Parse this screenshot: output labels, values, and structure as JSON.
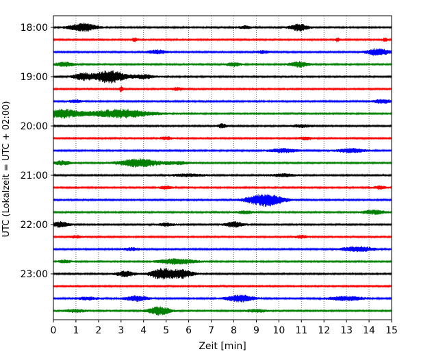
{
  "chart_data": {
    "type": "line",
    "title": "",
    "xlabel": "Zeit  [min]",
    "ylabel": "UTC (Lokalzeit = UTC + 02:00)",
    "xlim": [
      0,
      15
    ],
    "x_ticks": [
      0,
      1,
      2,
      3,
      4,
      5,
      6,
      7,
      8,
      9,
      10,
      11,
      12,
      13,
      14,
      15
    ],
    "x_tick_labels": [
      "0",
      "1",
      "2",
      "3",
      "4",
      "5",
      "6",
      "7",
      "8",
      "9",
      "10",
      "11",
      "12",
      "13",
      "14",
      "15"
    ],
    "y_tick_labels": [
      "18:00",
      "19:00",
      "20:00",
      "21:00",
      "22:00",
      "23:00"
    ],
    "grid": "vertical dotted",
    "trace_colors": [
      "#000000",
      "#ff0000",
      "#0000ff",
      "#008000"
    ],
    "traces": [
      {
        "start": "18:00",
        "events": [
          {
            "t": 1.3,
            "a": 6,
            "w": 0.6
          },
          {
            "t": 10.9,
            "a": 5,
            "w": 0.4
          },
          {
            "t": 8.5,
            "a": 2,
            "w": 0.3
          }
        ]
      },
      {
        "start": "18:15",
        "events": [
          {
            "t": 3.6,
            "a": 3,
            "w": 0.1
          },
          {
            "t": 12.6,
            "a": 3,
            "w": 0.1
          },
          {
            "t": 14.7,
            "a": 3,
            "w": 0.1
          }
        ]
      },
      {
        "start": "18:30",
        "events": [
          {
            "t": 4.6,
            "a": 3,
            "w": 0.4
          },
          {
            "t": 14.4,
            "a": 5,
            "w": 0.5
          },
          {
            "t": 9.3,
            "a": 2,
            "w": 0.3
          }
        ]
      },
      {
        "start": "18:45",
        "events": [
          {
            "t": 0.5,
            "a": 3,
            "w": 0.4
          },
          {
            "t": 8.0,
            "a": 3,
            "w": 0.3
          },
          {
            "t": 10.9,
            "a": 4,
            "w": 0.4
          }
        ]
      },
      {
        "start": "19:00",
        "events": [
          {
            "t": 1.3,
            "a": 5,
            "w": 0.4
          },
          {
            "t": 2.5,
            "a": 9,
            "w": 0.7
          },
          {
            "t": 4.0,
            "a": 3,
            "w": 0.5
          }
        ]
      },
      {
        "start": "19:15",
        "events": [
          {
            "t": 3.0,
            "a": 4,
            "w": 0.1
          },
          {
            "t": 5.5,
            "a": 2,
            "w": 0.3
          }
        ]
      },
      {
        "start": "19:30",
        "events": [
          {
            "t": 1.0,
            "a": 2,
            "w": 0.3
          },
          {
            "t": 14.6,
            "a": 3,
            "w": 0.4
          }
        ]
      },
      {
        "start": "19:45",
        "events": [
          {
            "t": 0.4,
            "a": 6,
            "w": 0.8
          },
          {
            "t": 3.0,
            "a": 6,
            "w": 1.4
          }
        ]
      },
      {
        "start": "20:00",
        "events": [
          {
            "t": 7.5,
            "a": 3,
            "w": 0.2
          },
          {
            "t": 11.0,
            "a": 2,
            "w": 0.5
          }
        ]
      },
      {
        "start": "20:15",
        "events": [
          {
            "t": 5.0,
            "a": 2,
            "w": 0.3
          },
          {
            "t": 11.2,
            "a": 2,
            "w": 0.3
          }
        ]
      },
      {
        "start": "20:30",
        "events": [
          {
            "t": 10.2,
            "a": 3,
            "w": 0.6
          },
          {
            "t": 13.2,
            "a": 3,
            "w": 0.6
          }
        ]
      },
      {
        "start": "20:45",
        "events": [
          {
            "t": 0.4,
            "a": 3,
            "w": 0.4
          },
          {
            "t": 3.8,
            "a": 6,
            "w": 0.9
          },
          {
            "t": 5.5,
            "a": 2,
            "w": 0.6
          }
        ]
      },
      {
        "start": "21:00",
        "events": [
          {
            "t": 6.0,
            "a": 2,
            "w": 0.7
          },
          {
            "t": 10.2,
            "a": 2,
            "w": 0.6
          }
        ]
      },
      {
        "start": "21:15",
        "events": [
          {
            "t": 5.0,
            "a": 2,
            "w": 0.3
          },
          {
            "t": 14.5,
            "a": 2,
            "w": 0.3
          }
        ]
      },
      {
        "start": "21:30",
        "events": [
          {
            "t": 9.4,
            "a": 9,
            "w": 0.8
          }
        ]
      },
      {
        "start": "21:45",
        "events": [
          {
            "t": 14.2,
            "a": 3,
            "w": 0.5
          },
          {
            "t": 8.5,
            "a": 2,
            "w": 0.4
          }
        ]
      },
      {
        "start": "22:00",
        "events": [
          {
            "t": 0.3,
            "a": 4,
            "w": 0.4
          },
          {
            "t": 8.0,
            "a": 4,
            "w": 0.4
          },
          {
            "t": 5.0,
            "a": 2,
            "w": 0.4
          }
        ]
      },
      {
        "start": "22:15",
        "events": [
          {
            "t": 1.0,
            "a": 2,
            "w": 0.3
          },
          {
            "t": 11.0,
            "a": 2,
            "w": 0.3
          }
        ]
      },
      {
        "start": "22:30",
        "events": [
          {
            "t": 13.5,
            "a": 4,
            "w": 0.7
          },
          {
            "t": 3.5,
            "a": 2,
            "w": 0.4
          }
        ]
      },
      {
        "start": "22:45",
        "events": [
          {
            "t": 5.5,
            "a": 4,
            "w": 0.8
          },
          {
            "t": 0.5,
            "a": 2,
            "w": 0.3
          }
        ]
      },
      {
        "start": "23:00",
        "events": [
          {
            "t": 3.2,
            "a": 4,
            "w": 0.4
          },
          {
            "t": 4.8,
            "a": 8,
            "w": 0.5
          },
          {
            "t": 5.7,
            "a": 6,
            "w": 0.5
          }
        ]
      },
      {
        "start": "23:15",
        "events": [
          {
            "t": 7.0,
            "a": 1,
            "w": 0.3
          }
        ]
      },
      {
        "start": "23:30",
        "events": [
          {
            "t": 3.7,
            "a": 4,
            "w": 0.5
          },
          {
            "t": 8.3,
            "a": 5,
            "w": 0.6
          },
          {
            "t": 13.0,
            "a": 3,
            "w": 0.8
          },
          {
            "t": 1.5,
            "a": 2,
            "w": 0.5
          }
        ]
      },
      {
        "start": "23:45",
        "events": [
          {
            "t": 4.7,
            "a": 6,
            "w": 0.5
          },
          {
            "t": 1.0,
            "a": 2,
            "w": 0.5
          },
          {
            "t": 9.0,
            "a": 2,
            "w": 0.5
          }
        ]
      }
    ]
  }
}
